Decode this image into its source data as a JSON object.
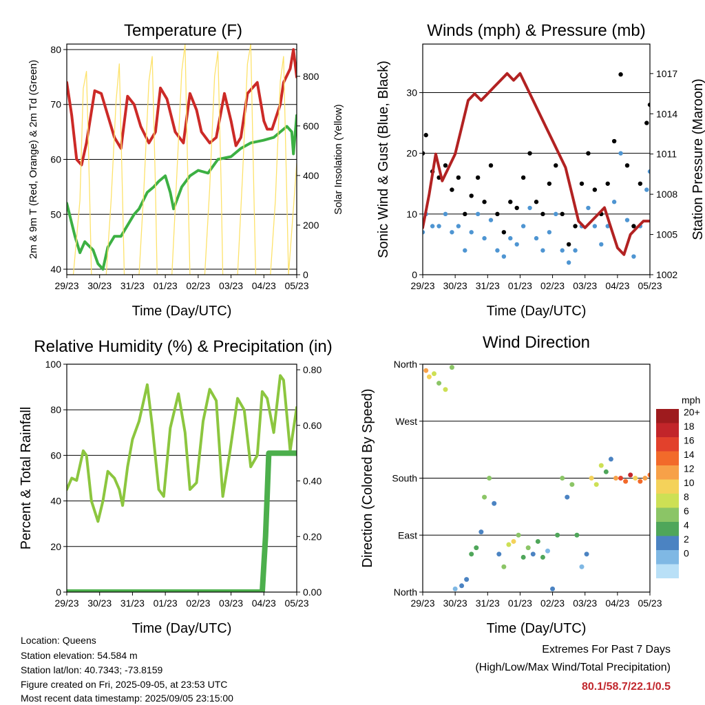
{
  "x_ticks": [
    "29/23",
    "30/23",
    "31/23",
    "01/23",
    "02/23",
    "03/23",
    "04/23",
    "05/23"
  ],
  "time_label": "Time (Day/UTC)",
  "chart_data": [
    {
      "type": "line",
      "title": "Temperature (F)",
      "ylabel": "2m & 9m T (Red, Orange) & 2m Td (Green)",
      "ylabel_right": "Solar Insolation (Yellow)",
      "xlabel": "Time (Day/UTC)",
      "ylim": [
        39,
        81
      ],
      "yticks": [
        40,
        50,
        60,
        70,
        80
      ],
      "ylim_right": [
        0,
        930
      ],
      "yticks_right": [
        0,
        200,
        400,
        600,
        800
      ],
      "grid": true,
      "x_range": [
        0,
        7
      ],
      "series": [
        {
          "color": "#cc2a27",
          "axis": "left",
          "x": [
            0,
            0.15,
            0.3,
            0.45,
            0.6,
            0.85,
            1.05,
            1.25,
            1.45,
            1.65,
            1.85,
            2.05,
            2.25,
            2.5,
            2.7,
            2.85,
            3.05,
            3.3,
            3.55,
            3.75,
            3.95,
            4.1,
            4.35,
            4.55,
            4.8,
            5.0,
            5.15,
            5.3,
            5.5,
            5.8,
            6.0,
            6.1,
            6.25,
            6.5,
            6.6,
            6.8,
            6.9,
            7.0
          ],
          "y": [
            74,
            68,
            60,
            59,
            63,
            72.5,
            72,
            68,
            64,
            62,
            71.5,
            70,
            66,
            63,
            65,
            73,
            71,
            65,
            63,
            72,
            69,
            65,
            63,
            64,
            72,
            67,
            62.5,
            64,
            72,
            74,
            67,
            65.5,
            65.5,
            70,
            74,
            76.5,
            80,
            75
          ]
        },
        {
          "color": "#3cb043",
          "axis": "left",
          "x": [
            0,
            0.25,
            0.4,
            0.55,
            0.8,
            0.95,
            1.1,
            1.25,
            1.45,
            1.65,
            1.85,
            2.05,
            2.2,
            2.45,
            2.65,
            2.8,
            3.0,
            3.15,
            3.25,
            3.5,
            3.75,
            4.0,
            4.3,
            4.6,
            5.0,
            5.3,
            5.6,
            6.0,
            6.3,
            6.5,
            6.7,
            6.85,
            6.9,
            7.0
          ],
          "y": [
            52,
            46,
            43,
            45,
            43.5,
            41,
            40,
            44,
            46,
            46,
            48,
            50,
            51,
            54,
            55,
            56,
            57,
            54,
            51,
            55,
            57,
            58,
            57.5,
            60,
            60.5,
            62,
            63,
            63.5,
            64,
            65,
            66,
            65,
            61,
            68
          ]
        },
        {
          "color": "#fde26a",
          "axis": "right",
          "x": [
            0,
            0.2,
            0.4,
            0.5,
            0.6,
            0.7,
            0.75,
            1.2,
            1.35,
            1.5,
            1.6,
            1.7,
            1.75,
            2.2,
            2.35,
            2.5,
            2.6,
            2.7,
            2.75,
            3.2,
            3.35,
            3.5,
            3.6,
            3.7,
            3.75,
            4.2,
            4.35,
            4.5,
            4.6,
            4.7,
            4.75,
            5.2,
            5.35,
            5.5,
            5.6,
            5.7,
            5.75,
            6.2,
            6.35,
            6.5,
            6.6,
            6.7,
            6.75,
            7.0
          ],
          "y": [
            0,
            0,
            300,
            750,
            820,
            300,
            0,
            0,
            300,
            700,
            850,
            300,
            0,
            0,
            350,
            780,
            880,
            350,
            0,
            0,
            400,
            820,
            930,
            300,
            0,
            0,
            350,
            800,
            900,
            350,
            0,
            0,
            400,
            850,
            930,
            300,
            0,
            0,
            300,
            780,
            880,
            300,
            0,
            450
          ]
        }
      ]
    },
    {
      "type": "scatter",
      "title": "Winds (mph) & Pressure (mb)",
      "ylabel": "Sonic Wind & Gust (Blue, Black)",
      "ylabel_right": "Station Pressure (Maroon)",
      "xlabel": "Time (Day/UTC)",
      "ylim": [
        0,
        38
      ],
      "yticks": [
        0,
        10,
        20,
        30
      ],
      "ylim_right": [
        1002,
        1019.2
      ],
      "yticks_right": [
        1002,
        1005,
        1008,
        1011,
        1014,
        1017
      ],
      "grid": true,
      "x_range": [
        0,
        7
      ],
      "series": [
        {
          "color": "#000000",
          "axis": "left",
          "x": [
            0,
            0.1,
            0.3,
            0.5,
            0.7,
            0.9,
            1.1,
            1.3,
            1.5,
            1.7,
            1.9,
            2.1,
            2.3,
            2.5,
            2.7,
            2.9,
            3.1,
            3.3,
            3.5,
            3.7,
            3.9,
            4.1,
            4.3,
            4.5,
            4.7,
            4.9,
            5.1,
            5.3,
            5.5,
            5.7,
            5.9,
            6.1,
            6.3,
            6.5,
            6.7,
            6.9,
            7.0
          ],
          "y": [
            20,
            23,
            17,
            16,
            18,
            14,
            16,
            10,
            13,
            16,
            12,
            18,
            10,
            7,
            12,
            11,
            16,
            20,
            12,
            10,
            15,
            18,
            10,
            5,
            8,
            15,
            20,
            14,
            10,
            15,
            22,
            33,
            18,
            8,
            15,
            25,
            28
          ]
        },
        {
          "color": "#4e95d2",
          "axis": "left",
          "x": [
            0,
            0.1,
            0.3,
            0.5,
            0.7,
            0.9,
            1.1,
            1.3,
            1.5,
            1.7,
            1.9,
            2.1,
            2.3,
            2.5,
            2.7,
            2.9,
            3.1,
            3.3,
            3.5,
            3.7,
            3.9,
            4.1,
            4.3,
            4.5,
            4.7,
            4.9,
            5.1,
            5.3,
            5.5,
            5.7,
            5.9,
            6.1,
            6.3,
            6.5,
            6.7,
            6.9,
            7.0
          ],
          "y": [
            7,
            10,
            8,
            8,
            10,
            7,
            8,
            4,
            7,
            10,
            6,
            9,
            4,
            3,
            6,
            5,
            8,
            11,
            6,
            4,
            7,
            10,
            4,
            2,
            4,
            8,
            11,
            8,
            5,
            8,
            12,
            20,
            9,
            3,
            8,
            14,
            17
          ]
        },
        {
          "color": "#b22222",
          "axis": "right",
          "x": [
            0,
            0.2,
            0.4,
            0.6,
            0.8,
            1.0,
            1.2,
            1.4,
            1.6,
            1.8,
            2.0,
            2.2,
            2.4,
            2.6,
            2.8,
            3.0,
            3.2,
            3.4,
            3.6,
            3.8,
            4.0,
            4.2,
            4.4,
            4.6,
            4.8,
            5.0,
            5.2,
            5.4,
            5.6,
            5.8,
            6.0,
            6.2,
            6.4,
            6.6,
            6.8,
            7.0
          ],
          "y": [
            1005.5,
            1008,
            1011,
            1009,
            1010,
            1011,
            1013,
            1015,
            1015.5,
            1015,
            1015.5,
            1016,
            1016.5,
            1017,
            1016.5,
            1017,
            1016,
            1015,
            1014,
            1013,
            1012,
            1011,
            1010,
            1008,
            1006,
            1005.5,
            1006,
            1006.5,
            1007,
            1005.5,
            1004,
            1003.5,
            1005,
            1005.5,
            1006,
            1006
          ]
        }
      ]
    },
    {
      "type": "line",
      "title": "Relative Humidity (%) & Precipitation (in)",
      "ylabel": "Percent & Total Rainfall",
      "xlabel": "Time (Day/UTC)",
      "ylim": [
        0,
        100
      ],
      "yticks": [
        0,
        20,
        40,
        60,
        80,
        100
      ],
      "ylim_right": [
        0,
        0.82
      ],
      "yticks_right": [
        "0.00",
        "0.20",
        "0.40",
        "0.60",
        "0.80"
      ],
      "grid": true,
      "x_range": [
        0,
        7
      ],
      "series": [
        {
          "color": "#8cc63f",
          "axis": "left",
          "x": [
            0,
            0.15,
            0.3,
            0.5,
            0.6,
            0.75,
            0.95,
            1.1,
            1.25,
            1.45,
            1.6,
            1.7,
            1.85,
            2.0,
            2.2,
            2.45,
            2.6,
            2.8,
            2.95,
            3.15,
            3.4,
            3.6,
            3.75,
            3.95,
            4.15,
            4.35,
            4.55,
            4.75,
            4.95,
            5.2,
            5.4,
            5.6,
            5.8,
            5.95,
            6.1,
            6.3,
            6.5,
            6.6,
            6.8,
            7.0
          ],
          "y": [
            45,
            50,
            49,
            62,
            60,
            40,
            31,
            40,
            53,
            50,
            45,
            38,
            55,
            67,
            75,
            91,
            73,
            45,
            42,
            72,
            87,
            70,
            45,
            48,
            75,
            89,
            84,
            42,
            60,
            85,
            80,
            55,
            60,
            88,
            85,
            70,
            95,
            93,
            62,
            81
          ]
        },
        {
          "color": "#4caf4c",
          "axis": "right",
          "x": [
            0,
            1,
            2,
            3,
            4,
            5,
            5.95,
            6.0,
            6.05,
            6.1,
            6.15,
            7.0
          ],
          "y": [
            0,
            0,
            0,
            0,
            0,
            0,
            0,
            0.1,
            0.2,
            0.35,
            0.5,
            0.5
          ]
        }
      ]
    },
    {
      "type": "scatter",
      "title": "Wind Direction",
      "ylabel": "Direction (Colored By Speed)",
      "xlabel": "Time (Day/UTC)",
      "ylim": [
        0,
        360
      ],
      "yticks": [
        "North",
        "East",
        "South",
        "West",
        "North"
      ],
      "grid": true,
      "x_range": [
        0,
        7
      ],
      "colorbar": {
        "title": "mph",
        "labels": [
          "20+",
          "18",
          "16",
          "14",
          "12",
          "10",
          "8",
          "6",
          "4",
          "2",
          "0"
        ],
        "colors": [
          "#9e1b1e",
          "#c2252a",
          "#e2412c",
          "#f26a2a",
          "#f7a148",
          "#f4d25a",
          "#cde055",
          "#8bc566",
          "#4fa65a",
          "#4b83c2",
          "#7fb8e4",
          "#b9e0f7"
        ]
      },
      "x": [
        0.1,
        0.2,
        0.35,
        0.5,
        0.7,
        0.9,
        1.0,
        1.2,
        1.35,
        1.5,
        1.65,
        1.8,
        1.9,
        2.05,
        2.2,
        2.35,
        2.5,
        2.65,
        2.8,
        2.95,
        3.1,
        3.25,
        3.4,
        3.55,
        3.7,
        3.85,
        4.0,
        4.15,
        4.3,
        4.45,
        4.6,
        4.75,
        4.9,
        5.05,
        5.2,
        5.35,
        5.5,
        5.65,
        5.8,
        5.95,
        6.1,
        6.25,
        6.4,
        6.55,
        6.7,
        6.85,
        7.0
      ],
      "y": [
        350,
        340,
        345,
        330,
        320,
        355,
        5,
        10,
        20,
        60,
        70,
        95,
        150,
        180,
        140,
        60,
        40,
        75,
        80,
        90,
        55,
        70,
        60,
        80,
        55,
        65,
        5,
        90,
        180,
        150,
        170,
        90,
        40,
        60,
        180,
        170,
        200,
        190,
        210,
        180,
        180,
        175,
        185,
        180,
        175,
        180,
        185
      ],
      "speed": [
        14,
        12,
        10,
        8,
        10,
        8,
        2,
        4,
        4,
        6,
        6,
        4,
        8,
        8,
        4,
        4,
        8,
        10,
        12,
        8,
        6,
        8,
        4,
        6,
        6,
        2,
        4,
        6,
        8,
        4,
        8,
        6,
        2,
        4,
        12,
        10,
        10,
        6,
        4,
        14,
        18,
        16,
        20,
        12,
        16,
        14,
        16
      ]
    }
  ],
  "info": {
    "location": "Location: Queens",
    "elevation": "Station elevation: 54.584 m",
    "latlon": "Station lat/lon: 40.7343; -73.8159",
    "created": "Figure created on Fri, 2025-09-05, at 23:53 UTC",
    "recent": "Most recent data timestamp: 2025/09/05 23:15:00"
  },
  "extremes": {
    "heading": "Extremes For Past 7 Days",
    "subheading": "(High/Low/Max Wind/Total Precipitation)",
    "values": "80.1/58.7/22.1/0.5",
    "value_color": "#c1272d"
  }
}
